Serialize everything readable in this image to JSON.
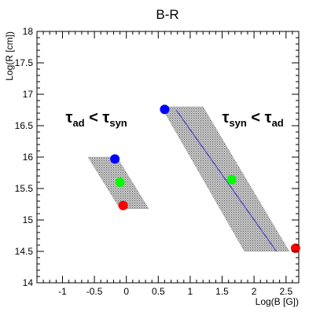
{
  "chart_data": {
    "type": "scatter",
    "title": "B-R",
    "xlabel": "Log(B [G])",
    "ylabel": "Log(R [cm])",
    "xlim": [
      -1.4,
      2.7
    ],
    "ylim": [
      14,
      18
    ],
    "x_ticks": [
      "-1",
      "-0.5",
      "0",
      "0.5",
      "1",
      "1.5",
      "2",
      "2.5"
    ],
    "y_ticks": [
      "14",
      "14.5",
      "15",
      "15.5",
      "16",
      "16.5",
      "17",
      "17.5",
      "18"
    ],
    "points": [
      {
        "x": -0.18,
        "y": 15.97,
        "color": "#0000ff"
      },
      {
        "x": -0.1,
        "y": 15.6,
        "color": "#00ff00"
      },
      {
        "x": -0.05,
        "y": 15.23,
        "color": "#ff0000"
      },
      {
        "x": 0.6,
        "y": 16.76,
        "color": "#0000ff"
      },
      {
        "x": 1.65,
        "y": 15.64,
        "color": "#00ff00"
      },
      {
        "x": 2.65,
        "y": 14.55,
        "color": "#ff0000"
      }
    ],
    "bands": [
      {
        "polygon": [
          [
            -0.6,
            16.0
          ],
          [
            -0.15,
            16.0
          ],
          [
            0.35,
            15.18
          ],
          [
            -0.1,
            15.18
          ]
        ]
      },
      {
        "polygon": [
          [
            0.55,
            16.8
          ],
          [
            1.2,
            16.8
          ],
          [
            2.55,
            14.5
          ],
          [
            1.85,
            14.5
          ]
        ]
      }
    ],
    "lines": [
      {
        "x": [
          0.78,
          2.35
        ],
        "y": [
          16.75,
          14.5
        ],
        "color": "#5a4fc8"
      }
    ],
    "annotations": [
      {
        "main": "τ",
        "sub": "ad",
        "op": " < ",
        "main2": "τ",
        "sub2": "syn",
        "x": -0.95,
        "y": 16.55
      },
      {
        "main": "τ",
        "sub": "syn",
        "op": " < ",
        "main2": "τ",
        "sub2": "ad",
        "x": 1.5,
        "y": 16.55
      }
    ],
    "grid": false
  }
}
